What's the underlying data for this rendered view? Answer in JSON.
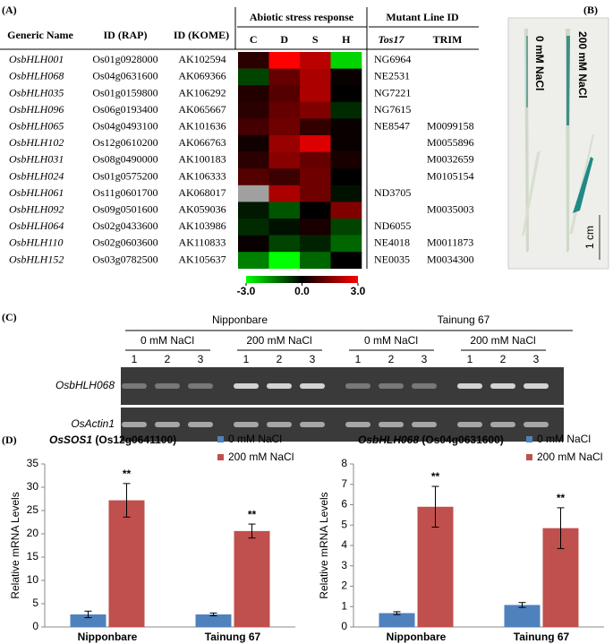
{
  "panel_a": {
    "label": "(A)",
    "headers": {
      "generic": "Generic Name",
      "rap": "ID (RAP)",
      "kome": "ID (KOME)",
      "stress": "Abiotic stress response",
      "mutant": "Mutant Line ID",
      "conditions": [
        "C",
        "D",
        "S",
        "H"
      ],
      "tos17": "Tos17",
      "trim": "TRIM"
    },
    "rows": [
      {
        "name": "OsbHLH001",
        "rap": "Os01g0928000",
        "kome": "AK102594",
        "tos17": "NG6964",
        "trim": null,
        "expression": [
          0.5,
          3,
          2.2,
          -2.5
        ]
      },
      {
        "name": "OsbHLH068",
        "rap": "Os04g0631600",
        "kome": "AK069366",
        "tos17": "NE2531",
        "trim": null,
        "expression": [
          -0.8,
          1.2,
          2,
          0.1
        ]
      },
      {
        "name": "OsbHLH035",
        "rap": "Os01g0159800",
        "kome": "AK106292",
        "tos17": "NG7221",
        "trim": null,
        "expression": [
          0.4,
          1,
          2,
          0
        ]
      },
      {
        "name": "OsbHLH096",
        "rap": "Os06g0193400",
        "kome": "AK065667",
        "tos17": "NG7615",
        "trim": null,
        "expression": [
          0.5,
          1.2,
          1.5,
          -0.5
        ]
      },
      {
        "name": "OsbHLH065",
        "rap": "Os04g0493100",
        "kome": "AK101636",
        "tos17": "NE8547",
        "trim": "M0099158",
        "expression": [
          0.8,
          1.3,
          0.6,
          0.1
        ]
      },
      {
        "name": "OsbHLH102",
        "rap": "Os12g0610200",
        "kome": "AK066763",
        "tos17": null,
        "trim": "M0055896",
        "expression": [
          0.2,
          1.8,
          2.6,
          0.1
        ]
      },
      {
        "name": "OsbHLH031",
        "rap": "Os08g0490000",
        "kome": "AK100183",
        "tos17": null,
        "trim": "M0032659",
        "expression": [
          0.5,
          1.6,
          1.2,
          0.3
        ]
      },
      {
        "name": "OsbHLH024",
        "rap": "Os01g0575200",
        "kome": "AK106333",
        "tos17": null,
        "trim": "M0105154",
        "expression": [
          1,
          0.7,
          1.3,
          0
        ]
      },
      {
        "name": "OsbHLH061",
        "rap": "Os11g0601700",
        "kome": "AK068017",
        "tos17": "ND3705",
        "trim": null,
        "expression": [
          null,
          2,
          1.3,
          -0.2
        ]
      },
      {
        "name": "OsbHLH092",
        "rap": "Os09g0501600",
        "kome": "AK059036",
        "tos17": null,
        "trim": "M0035003",
        "expression": [
          -0.3,
          -1,
          0,
          1.5
        ]
      },
      {
        "name": "OsbHLH064",
        "rap": "Os02g0433600",
        "kome": "AK103986",
        "tos17": "ND6055",
        "trim": null,
        "expression": [
          -0.5,
          -0.2,
          0.3,
          -0.8
        ]
      },
      {
        "name": "OsbHLH110",
        "rap": "Os02g0603600",
        "kome": "AK110833",
        "tos17": "NE4018",
        "trim": "M0011873",
        "expression": [
          0.1,
          -0.8,
          -0.4,
          -1.2
        ]
      },
      {
        "name": "OsbHLH152",
        "rap": "Os03g0782500",
        "kome": "AK105637",
        "tos17": "NE0035",
        "trim": "M0034300",
        "expression": [
          -1.5,
          -3,
          -1.2,
          0
        ]
      }
    ],
    "colorbar": {
      "range": [
        -3,
        3
      ],
      "ticks": [
        {
          "value": -3,
          "label": "-3.0"
        },
        {
          "value": 0,
          "label": "0.0"
        },
        {
          "value": 3,
          "label": "3.0"
        }
      ]
    }
  },
  "panel_b": {
    "label": "(B)",
    "conditions": [
      "0 mM NaCl",
      "200 mM NaCl"
    ],
    "scale": "1 cm"
  },
  "panel_c": {
    "label": "(C)",
    "cultivars": [
      {
        "name": "Nipponbare",
        "treatments": [
          "0 mM NaCl",
          "200 mM NaCl"
        ]
      },
      {
        "name": "Tainung 67",
        "treatments": [
          "0 mM NaCl",
          "200 mM NaCl"
        ]
      }
    ],
    "lanes": [
      "1",
      "2",
      "3"
    ],
    "genes": [
      "OsbHLH068",
      "OsActin1"
    ]
  },
  "panel_d": {
    "label": "(D)"
  },
  "chart_data": [
    {
      "type": "bar",
      "title_gene": "OsSOS1",
      "title_id": "(Os12g0641100)",
      "y_label": "Relative mRNA Levels",
      "categories": [
        "Nipponbare",
        "Tainung 67"
      ],
      "series": [
        {
          "name": "0 mM NaCl",
          "color": "#4f81bd",
          "values": [
            2.7,
            2.7
          ],
          "errors": [
            0.7,
            0.3
          ]
        },
        {
          "name": "200 mM NaCl",
          "color": "#c0504d",
          "values": [
            27.2,
            20.6
          ],
          "errors": [
            3.6,
            1.5
          ],
          "annotations": [
            "**",
            "**"
          ]
        }
      ],
      "ylim": [
        0,
        35
      ],
      "yticks": [
        0,
        5,
        10,
        15,
        20,
        25,
        30,
        35
      ]
    },
    {
      "type": "bar",
      "title_gene": "OsbHLH068",
      "title_id": "(Os04g0631600)",
      "y_label": "Relative mRNA Levels",
      "categories": [
        "Nipponbare",
        "Tainung 67"
      ],
      "series": [
        {
          "name": "0 mM NaCl",
          "color": "#4f81bd",
          "values": [
            0.68,
            1.08
          ],
          "errors": [
            0.07,
            0.12
          ]
        },
        {
          "name": "200 mM NaCl",
          "color": "#c0504d",
          "values": [
            5.9,
            4.85
          ],
          "errors": [
            1,
            1
          ],
          "annotations": [
            "**",
            "**"
          ]
        }
      ],
      "ylim": [
        0,
        8
      ],
      "yticks": [
        0,
        1,
        2,
        3,
        4,
        5,
        6,
        7,
        8
      ]
    }
  ]
}
